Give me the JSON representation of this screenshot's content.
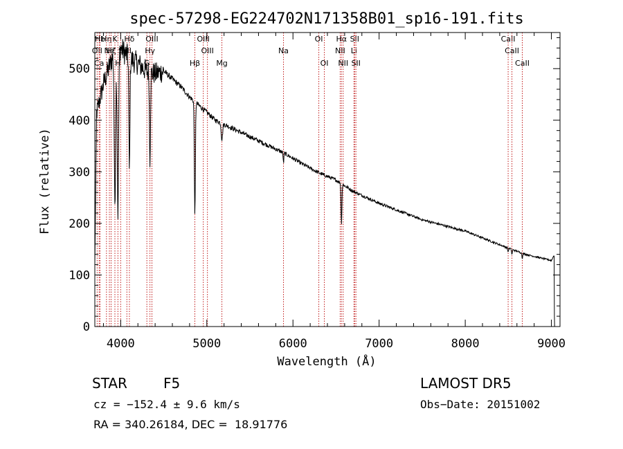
{
  "chart_data": {
    "type": "line",
    "title": "spec-57298-EG224702N171358B01_sp16-191.fits",
    "xlabel": "Wavelength (Å)",
    "ylabel": "Flux (relative)",
    "xlim": [
      3700,
      9100
    ],
    "ylim": [
      0,
      570
    ],
    "x_ticks": [
      4000,
      5000,
      6000,
      7000,
      8000,
      9000
    ],
    "y_ticks": [
      0,
      100,
      200,
      300,
      400,
      500
    ],
    "grid": false,
    "continuum": [
      [
        3700,
        400
      ],
      [
        3800,
        470
      ],
      [
        3900,
        520
      ],
      [
        4000,
        540
      ],
      [
        4100,
        520
      ],
      [
        4200,
        510
      ],
      [
        4300,
        495
      ],
      [
        4400,
        490
      ],
      [
        4500,
        495
      ],
      [
        4600,
        480
      ],
      [
        4700,
        465
      ],
      [
        4800,
        445
      ],
      [
        4900,
        430
      ],
      [
        5000,
        415
      ],
      [
        5100,
        400
      ],
      [
        5200,
        392
      ],
      [
        5300,
        384
      ],
      [
        5500,
        368
      ],
      [
        5700,
        352
      ],
      [
        5900,
        336
      ],
      [
        6100,
        316
      ],
      [
        6300,
        298
      ],
      [
        6500,
        284
      ],
      [
        6700,
        262
      ],
      [
        7000,
        239
      ],
      [
        7500,
        207
      ],
      [
        8000,
        185
      ],
      [
        8500,
        152
      ],
      [
        8700,
        140
      ],
      [
        9000,
        128
      ],
      [
        9030,
        138
      ]
    ],
    "absorption_lines": [
      {
        "x": 3933,
        "depth": 0.55,
        "width": 8
      },
      {
        "x": 3968,
        "depth": 0.6,
        "width": 8
      },
      {
        "x": 4101,
        "depth": 0.42,
        "width": 6
      },
      {
        "x": 4340,
        "depth": 0.35,
        "width": 6
      },
      {
        "x": 4861,
        "depth": 0.5,
        "width": 6
      },
      {
        "x": 5175,
        "depth": 0.08,
        "width": 8
      },
      {
        "x": 5890,
        "depth": 0.06,
        "width": 4
      },
      {
        "x": 6563,
        "depth": 0.28,
        "width": 5
      },
      {
        "x": 8498,
        "depth": 0.05,
        "width": 4
      },
      {
        "x": 8542,
        "depth": 0.07,
        "width": 4
      },
      {
        "x": 8662,
        "depth": 0.07,
        "width": 4
      }
    ],
    "line_markers": [
      {
        "x": 3727,
        "label": "OII",
        "row": 1
      },
      {
        "x": 3750,
        "label": "Ca",
        "row": 2
      },
      {
        "x": 3760,
        "label": "Hb",
        "row": 0
      },
      {
        "x": 3835,
        "label": "Hη",
        "row": 0
      },
      {
        "x": 3869,
        "label": "Ne",
        "row": 1
      },
      {
        "x": 3889,
        "label": "Hζ",
        "row": 1
      },
      {
        "x": 3933,
        "label": "K",
        "row": 0
      },
      {
        "x": 3968,
        "label": "H",
        "row": 2
      },
      {
        "x": 4000,
        "label": "S",
        "row": 1
      },
      {
        "x": 4072,
        "label": "SII",
        "row": 1
      },
      {
        "x": 4101,
        "label": "Hδ",
        "row": 0
      },
      {
        "x": 4304,
        "label": "G",
        "row": 2
      },
      {
        "x": 4340,
        "label": "Hγ",
        "row": 1
      },
      {
        "x": 4363,
        "label": "OIII",
        "row": 0
      },
      {
        "x": 4861,
        "label": "Hβ",
        "row": 2
      },
      {
        "x": 4959,
        "label": "OIII",
        "row": 0
      },
      {
        "x": 5007,
        "label": "OIII",
        "row": 1
      },
      {
        "x": 5175,
        "label": "Mg",
        "row": 2
      },
      {
        "x": 5890,
        "label": "Na",
        "row": 1
      },
      {
        "x": 6300,
        "label": "OI",
        "row": 0
      },
      {
        "x": 6364,
        "label": "OI",
        "row": 2
      },
      {
        "x": 6548,
        "label": "NII",
        "row": 1
      },
      {
        "x": 6563,
        "label": "Hα",
        "row": 0
      },
      {
        "x": 6583,
        "label": "NII",
        "row": 2
      },
      {
        "x": 6708,
        "label": "Li",
        "row": 1
      },
      {
        "x": 6716,
        "label": "SII",
        "row": 0
      },
      {
        "x": 6731,
        "label": "SII",
        "row": 2
      },
      {
        "x": 8498,
        "label": "CaII",
        "row": 0
      },
      {
        "x": 8542,
        "label": "CaII",
        "row": 1
      },
      {
        "x": 8662,
        "label": "CaII",
        "row": 2
      }
    ]
  },
  "info": {
    "star_label": "STAR",
    "subclass": "F5",
    "survey": "LAMOST DR5",
    "cz": "cz = −152.4 ± 9.6 km/s",
    "obs_date": "Obs−Date: 20151002",
    "coords": "RA = 340.26184, DEC =  18.91776"
  }
}
